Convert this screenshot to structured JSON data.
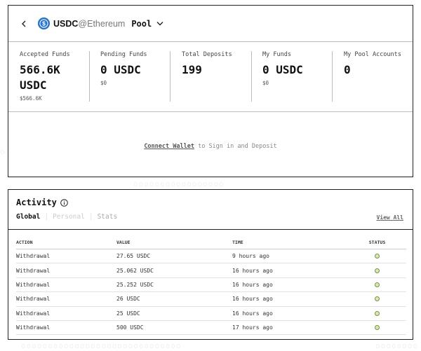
{
  "header": {
    "token": "USDC",
    "chain": "@Ethereum",
    "pool_label": "Pool"
  },
  "stats": [
    {
      "label": "Accepted Funds",
      "value": "566.6K USDC",
      "sub": "$566.6K"
    },
    {
      "label": "Pending Funds",
      "value": "0 USDC",
      "sub": "$0"
    },
    {
      "label": "Total Deposits",
      "value": "199",
      "sub": ""
    },
    {
      "label": "My Funds",
      "value": "0 USDC",
      "sub": "$0"
    },
    {
      "label": "My Pool Accounts",
      "value": "0",
      "sub": ""
    }
  ],
  "connect": {
    "link": "Connect Wallet",
    "text": " to Sign in and Deposit"
  },
  "activity": {
    "title": "Activity",
    "tabs": [
      "Global",
      "Personal",
      "Stats"
    ],
    "view_all": "View All",
    "columns": [
      "ACTION",
      "VALUE",
      "TIME",
      "STATUS"
    ],
    "rows": [
      {
        "action": "Withdrawal",
        "value": "27.65 USDC",
        "time": "9 hours ago"
      },
      {
        "action": "Withdrawal",
        "value": "25.062 USDC",
        "time": "16 hours ago"
      },
      {
        "action": "Withdrawal",
        "value": "25.252 USDC",
        "time": "16 hours ago"
      },
      {
        "action": "Withdrawal",
        "value": "26 USDC",
        "time": "16 hours ago"
      },
      {
        "action": "Withdrawal",
        "value": "25 USDC",
        "time": "16 hours ago"
      },
      {
        "action": "Withdrawal",
        "value": "500 USDC",
        "time": "17 hours ago"
      }
    ]
  },
  "colors": {
    "usdc_blue": "#2775ca",
    "status_ok": "#d6ebb0"
  }
}
